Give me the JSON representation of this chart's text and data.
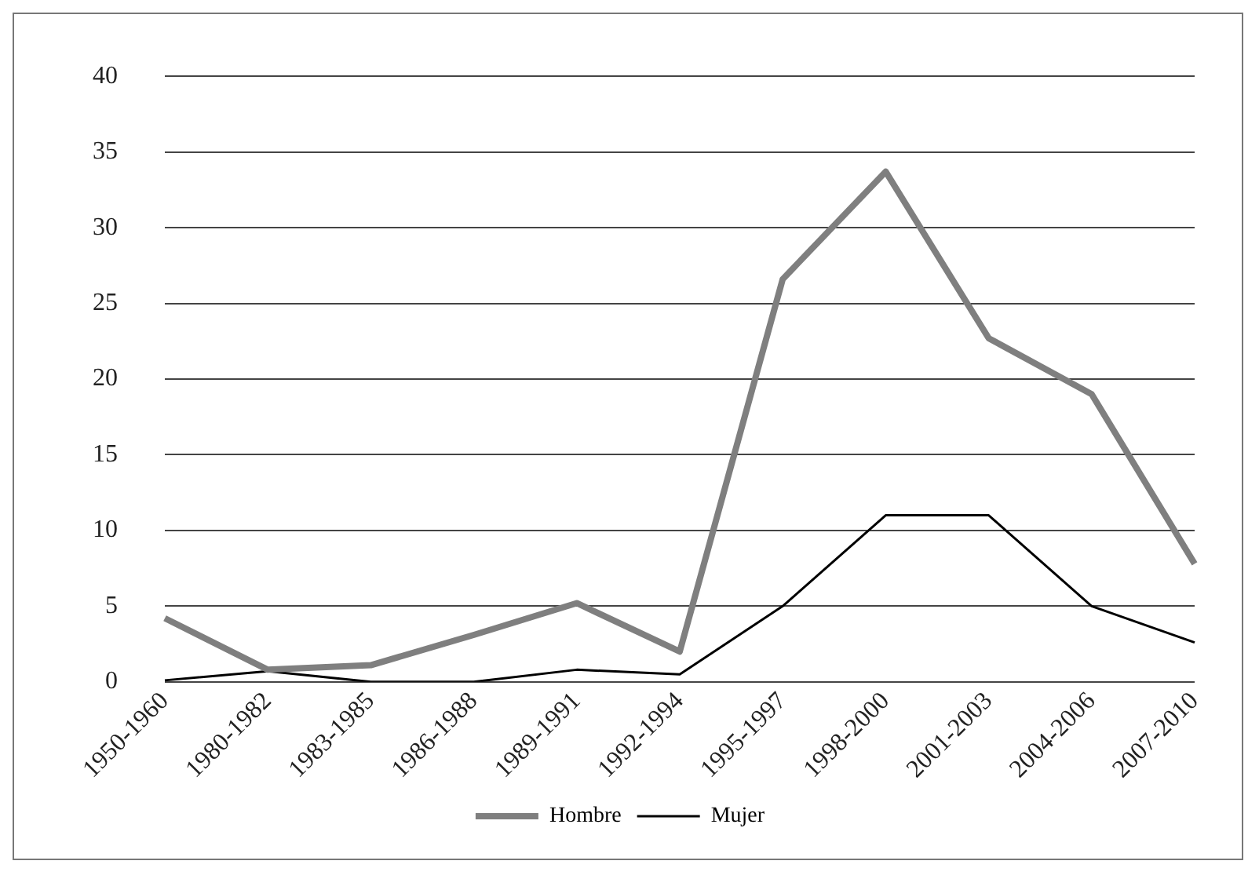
{
  "chart_data": {
    "type": "line",
    "categories": [
      "1950-1960",
      "1980-1982",
      "1983-1985",
      "1986-1988",
      "1989-1991",
      "1992-1994",
      "1995-1997",
      "1998-2000",
      "2001-2003",
      "2004-2006",
      "2007-2010"
    ],
    "series": [
      {
        "name": "Hombre",
        "color": "#7f7f7f",
        "values": [
          4.2,
          0.8,
          1.1,
          3.1,
          5.2,
          2.0,
          26.6,
          33.7,
          22.7,
          19.0,
          7.8
        ]
      },
      {
        "name": "Mujer",
        "color": "#000000",
        "values": [
          0.1,
          0.7,
          0,
          0,
          0.8,
          0.5,
          5.0,
          11.0,
          11.0,
          5.0,
          2.6
        ]
      }
    ],
    "ylim": [
      0,
      40
    ],
    "yticks": [
      0,
      5,
      10,
      15,
      20,
      25,
      30,
      35,
      40
    ],
    "grid": "y",
    "legend": "bottom",
    "marker": "none",
    "line_style": "solid"
  }
}
